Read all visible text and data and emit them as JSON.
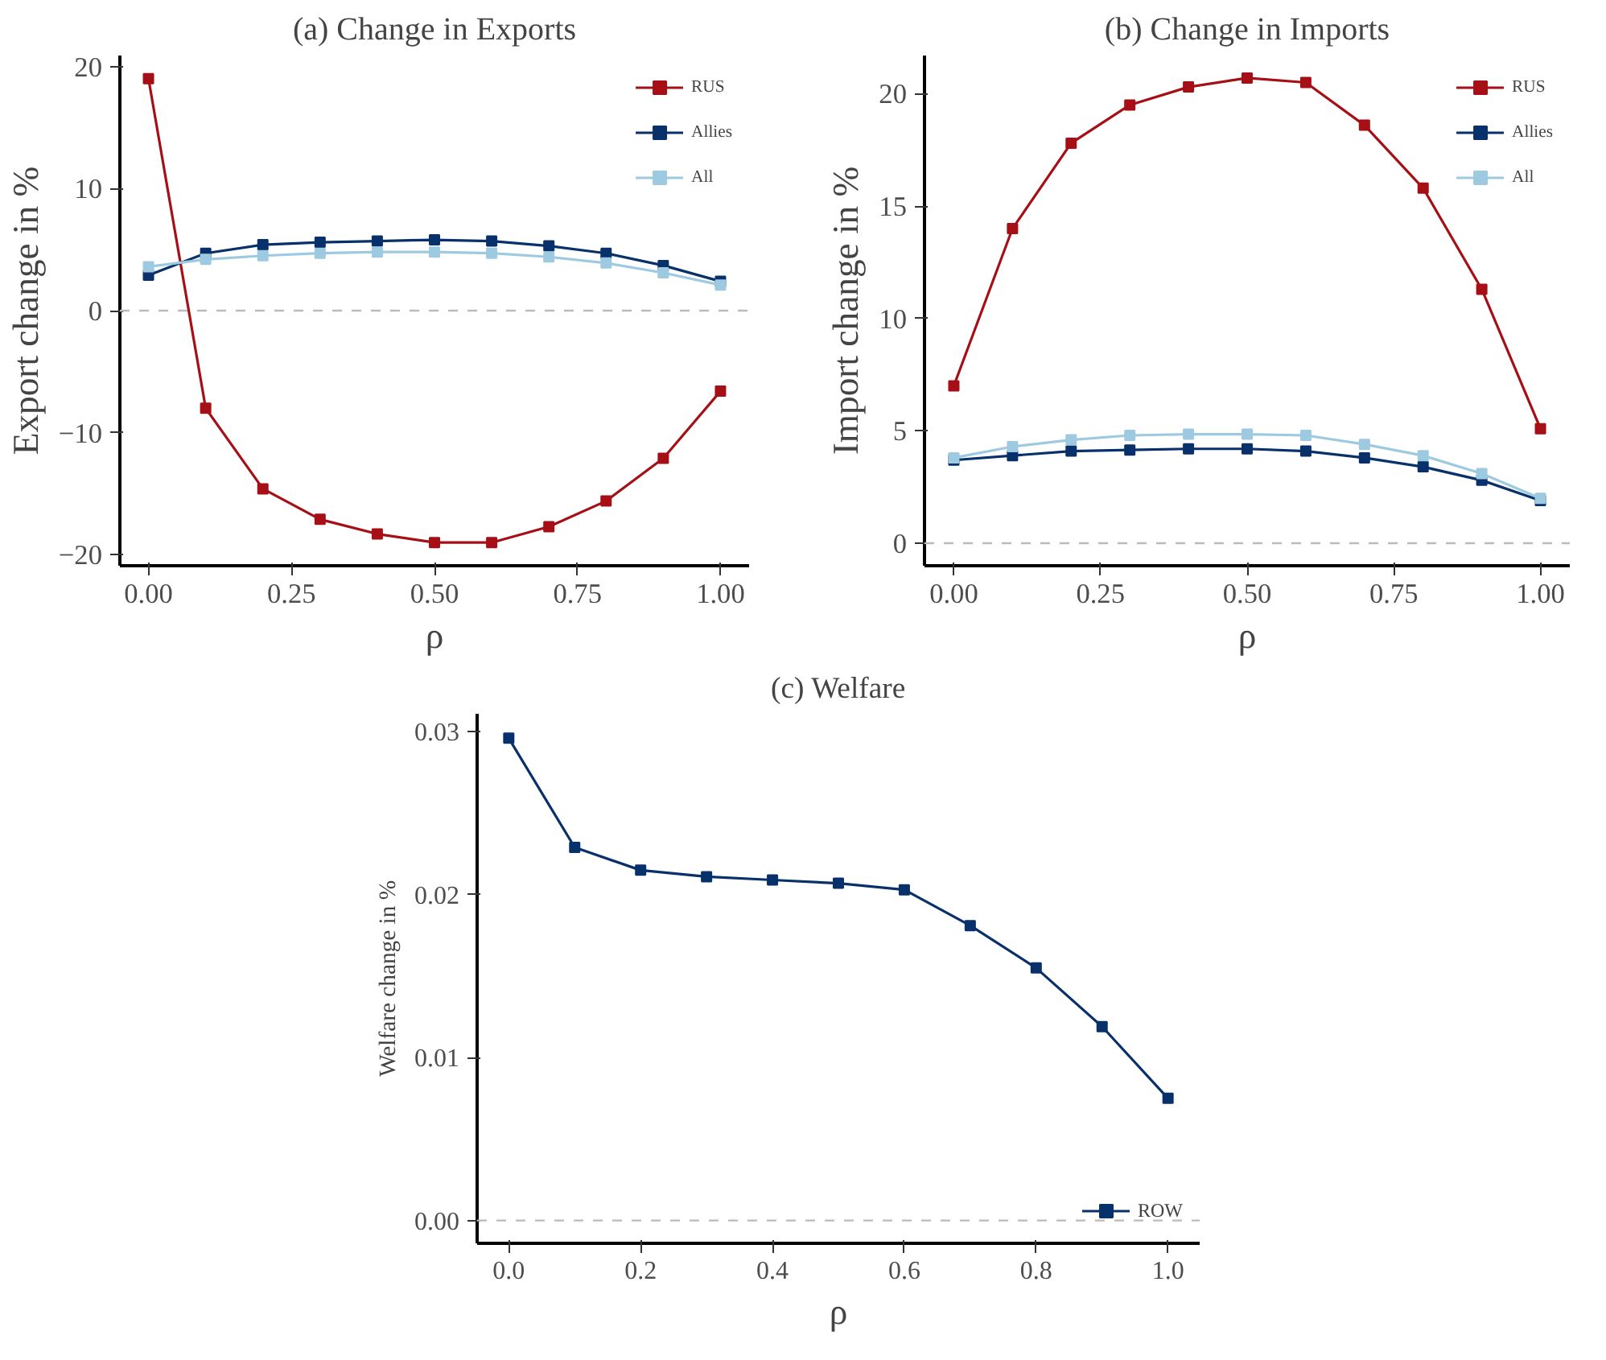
{
  "chart_data": [
    {
      "type": "line",
      "title": "(a) Change in Exports",
      "xlabel": "ρ",
      "ylabel": "Export change in %",
      "x": [
        0,
        0.1,
        0.2,
        0.3,
        0.4,
        0.5,
        0.6,
        0.7,
        0.8,
        0.9,
        1.0
      ],
      "series": [
        {
          "name": "RUS",
          "color": "#a50f15",
          "values": [
            19,
            -8,
            -14.6,
            -17.1,
            -18.3,
            -19,
            -19,
            -17.7,
            -15.6,
            -12.1,
            -6.6
          ]
        },
        {
          "name": "Allies",
          "color": "#08306b",
          "values": [
            2.9,
            4.7,
            5.4,
            5.6,
            5.7,
            5.8,
            5.7,
            5.3,
            4.7,
            3.7,
            2.4
          ]
        },
        {
          "name": "All",
          "color": "#9ecae1",
          "values": [
            3.6,
            4.2,
            4.5,
            4.7,
            4.8,
            4.8,
            4.7,
            4.4,
            3.9,
            3.1,
            2.1
          ]
        }
      ],
      "xlim": [
        -0.05,
        1.05
      ],
      "xticks": [
        {
          "value": 0,
          "label": "0.00"
        },
        0.25,
        {
          "value": 0.5,
          "label": "0.50"
        },
        0.75,
        {
          "value": 1,
          "label": "1.00"
        }
      ],
      "ylim": [
        -20.9,
        20.9
      ],
      "yticks": [
        -20,
        -10,
        0,
        10,
        20
      ],
      "ref_lines": [
        {
          "axis": "y",
          "value": 0,
          "color": "#bbbbbb",
          "line_style": "dashed"
        }
      ],
      "grid": false,
      "legend": "top right",
      "marker": "square",
      "line_style": "solid"
    },
    {
      "type": "line",
      "title": "(b) Change in Imports",
      "xlabel": "ρ",
      "ylabel": "Import change in %",
      "x": [
        0,
        0.1,
        0.2,
        0.3,
        0.4,
        0.5,
        0.6,
        0.7,
        0.8,
        0.9,
        1.0
      ],
      "series": [
        {
          "name": "RUS",
          "color": "#a50f15",
          "values": [
            7.0,
            14.0,
            17.8,
            19.5,
            20.3,
            20.7,
            20.5,
            18.6,
            15.8,
            11.3,
            5.1
          ]
        },
        {
          "name": "Allies",
          "color": "#08306b",
          "values": [
            3.7,
            3.9,
            4.1,
            4.15,
            4.2,
            4.2,
            4.1,
            3.8,
            3.4,
            2.8,
            1.9
          ]
        },
        {
          "name": "All",
          "color": "#9ecae1",
          "values": [
            3.8,
            4.3,
            4.6,
            4.8,
            4.85,
            4.85,
            4.8,
            4.4,
            3.9,
            3.1,
            2.0
          ]
        }
      ],
      "xlim": [
        -0.05,
        1.05
      ],
      "xticks": [
        {
          "value": 0,
          "label": "0.00"
        },
        0.25,
        {
          "value": 0.5,
          "label": "0.50"
        },
        0.75,
        {
          "value": 1,
          "label": "1.00"
        }
      ],
      "ylim": [
        -1,
        21.7
      ],
      "yticks": [
        0,
        5,
        10,
        15,
        20
      ],
      "ref_lines": [
        {
          "axis": "y",
          "value": 0,
          "color": "#bbbbbb",
          "line_style": "dashed"
        }
      ],
      "grid": false,
      "legend": "top right",
      "marker": "square",
      "line_style": "solid"
    },
    {
      "type": "line",
      "title": "(c) Welfare",
      "xlabel": "ρ",
      "ylabel": "Welfare change in %",
      "x": [
        0,
        0.1,
        0.2,
        0.3,
        0.4,
        0.5,
        0.6,
        0.7,
        0.8,
        0.9,
        1.0
      ],
      "series": [
        {
          "name": "ROW",
          "color": "#08306b",
          "values": [
            0.0296,
            0.0229,
            0.0215,
            0.0211,
            0.0209,
            0.0207,
            0.0203,
            0.0181,
            0.0155,
            0.0119,
            0.0075
          ]
        }
      ],
      "xlim": [
        -0.048,
        1.048
      ],
      "xticks": [
        {
          "value": 0,
          "label": "0.0"
        },
        0.2,
        0.4,
        0.6,
        0.8,
        {
          "value": 1,
          "label": "1.0"
        }
      ],
      "ylim": [
        -0.0014,
        0.0311
      ],
      "yticks": [
        {
          "value": 0,
          "label": "0.00"
        },
        {
          "value": 0.01,
          "label": "0.01"
        },
        {
          "value": 0.02,
          "label": "0.02"
        },
        {
          "value": 0.03,
          "label": "0.03"
        }
      ],
      "ref_lines": [
        {
          "axis": "y",
          "value": 0,
          "color": "#bbbbbb",
          "line_style": "dashed"
        }
      ],
      "grid": false,
      "legend": "bottom right",
      "marker": "square",
      "line_style": "solid"
    }
  ]
}
